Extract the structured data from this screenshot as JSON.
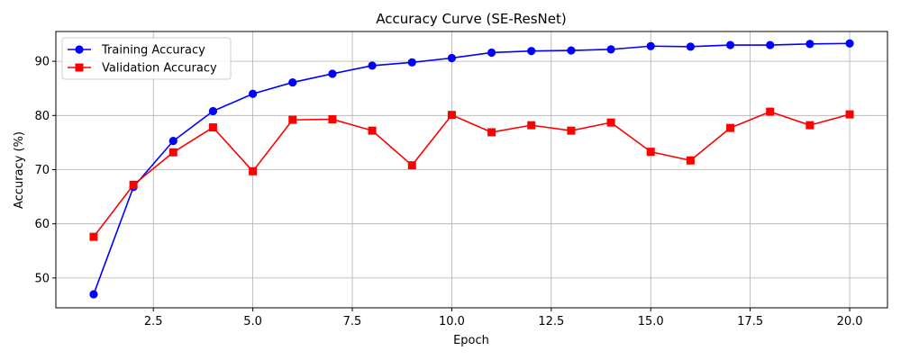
{
  "chart_data": {
    "type": "line",
    "title": "Accuracy Curve (SE-ResNet)",
    "xlabel": "Epoch",
    "ylabel": "Accuracy (%)",
    "xlim": [
      0.05,
      20.95
    ],
    "ylim": [
      44.5,
      95.5
    ],
    "xticks": [
      2.5,
      5.0,
      7.5,
      10.0,
      12.5,
      15.0,
      17.5,
      20.0
    ],
    "xtick_labels": [
      "2.5",
      "5.0",
      "7.5",
      "10.0",
      "12.5",
      "15.0",
      "17.5",
      "20.0"
    ],
    "yticks": [
      50,
      60,
      70,
      80,
      90
    ],
    "ytick_labels": [
      "50",
      "60",
      "70",
      "80",
      "90"
    ],
    "grid": true,
    "legend_position": "top-left",
    "x": [
      1,
      2,
      3,
      4,
      5,
      6,
      7,
      8,
      9,
      10,
      11,
      12,
      13,
      14,
      15,
      16,
      17,
      18,
      19,
      20
    ],
    "series": [
      {
        "name": "Training Accuracy",
        "color": "#0000ff",
        "marker": "circle",
        "values": [
          47.0,
          66.8,
          75.3,
          80.8,
          84.0,
          86.1,
          87.7,
          89.2,
          89.8,
          90.6,
          91.6,
          91.9,
          92.0,
          92.2,
          92.8,
          92.7,
          93.0,
          93.0,
          93.2,
          93.3
        ]
      },
      {
        "name": "Validation Accuracy",
        "color": "#ff0000",
        "marker": "square",
        "values": [
          57.6,
          67.2,
          73.2,
          77.8,
          69.7,
          79.2,
          79.3,
          77.2,
          70.8,
          80.1,
          76.9,
          78.2,
          77.2,
          78.7,
          73.3,
          71.7,
          77.7,
          80.7,
          78.2,
          80.2
        ]
      }
    ]
  }
}
